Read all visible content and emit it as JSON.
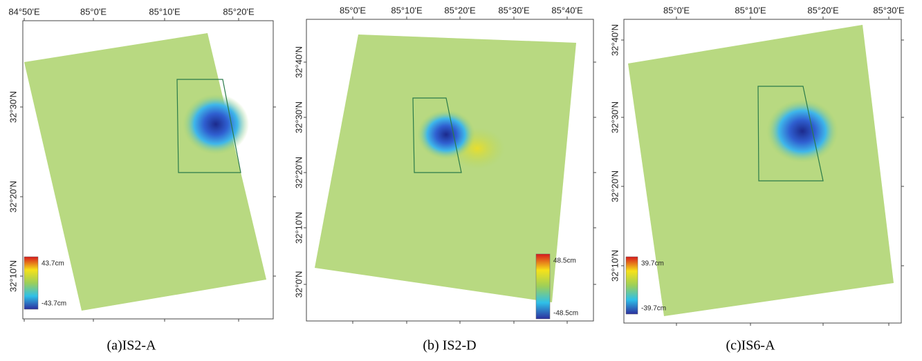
{
  "panels": [
    {
      "top_labels": [
        "84°50'E",
        "85°0'E",
        "85°10'E",
        "85°20'E"
      ],
      "left_labels": [
        "32°30'N",
        "32°20'N",
        "32°10'N"
      ],
      "colorbar": {
        "max": "43.7cm",
        "min": "-43.7cm"
      },
      "caption": "(a)IS2-A"
    },
    {
      "top_labels": [
        "85°0'E",
        "85°10'E",
        "85°20'E",
        "85°30'E",
        "85°40'E"
      ],
      "left_labels": [
        "32°40'N",
        "32°30'N",
        "32°20'N",
        "32°10'N",
        "32°0'N"
      ],
      "colorbar": {
        "max": "48.5cm",
        "min": "-48.5cm"
      },
      "caption": "(b) IS2-D"
    },
    {
      "top_labels": [
        "85°0'E",
        "85°10'E",
        "85°20'E",
        "85°30'E"
      ],
      "left_labels": [
        "32°40'N",
        "32°30'N",
        "32°20'N",
        "32°10'N"
      ],
      "colorbar": {
        "max": "39.7cm",
        "min": "-39.7cm"
      },
      "caption": "(c)IS6-A"
    }
  ]
}
